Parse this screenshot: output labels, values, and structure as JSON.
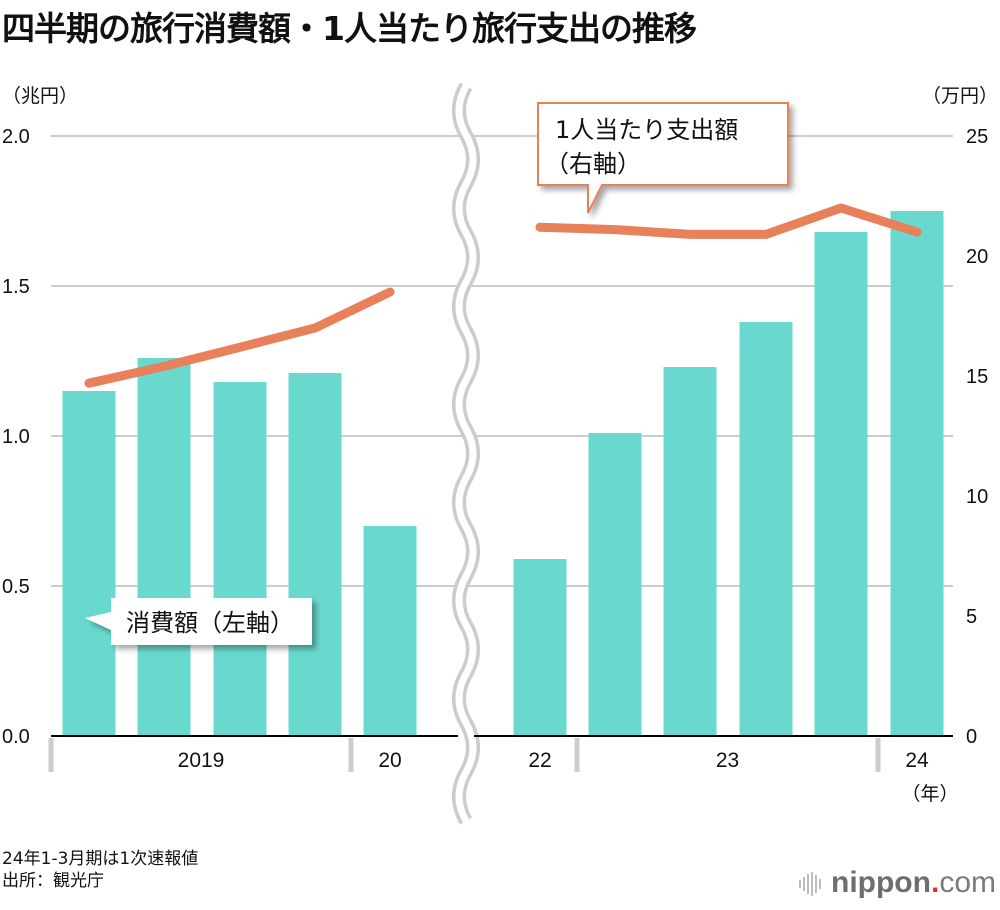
{
  "title": "四半期の旅行消費額・1人当たり旅行支出の推移",
  "notes": [
    "24年1-3月期は1次速報値",
    "出所：観光庁"
  ],
  "brand": {
    "name": "nippon",
    "dot": ".",
    "tld": "com"
  },
  "colors": {
    "bar": "#69d9cf",
    "line": "#e8805a",
    "grid": "#cccccc",
    "axis": "#000000",
    "break": "#cccccc",
    "separator": "#cccccc"
  },
  "chart_data": {
    "type": "bar",
    "title": "四半期の旅行消費額・1人当たり旅行支出の推移",
    "left_axis": {
      "unit": "（兆円）",
      "ylim": [
        0,
        2.0
      ],
      "ticks": [
        "0.0",
        "0.5",
        "1.0",
        "1.5",
        "2.0"
      ],
      "tick_values": [
        0,
        0.5,
        1.0,
        1.5,
        2.0
      ]
    },
    "right_axis": {
      "unit": "（万円）",
      "ylim": [
        0,
        25
      ],
      "ticks": [
        "0",
        "5",
        "10",
        "15",
        "20",
        "25"
      ],
      "tick_values": [
        0,
        5,
        10,
        15,
        20,
        25
      ]
    },
    "x_unit": "（年）",
    "grid": true,
    "axis_break": "between 2020 and 2022",
    "year_groups": [
      {
        "label": "2019",
        "quarters": 4
      },
      {
        "label": "20",
        "quarters": 1
      },
      {
        "label": "22",
        "quarters": 1
      },
      {
        "label": "23",
        "quarters": 4
      },
      {
        "label": "24",
        "quarters": 1
      }
    ],
    "categories": [
      "2019 Q1",
      "2019 Q2",
      "2019 Q3",
      "2019 Q4",
      "2020 Q1",
      "2022 Q4",
      "2023 Q1",
      "2023 Q2",
      "2023 Q3",
      "2023 Q4",
      "2024 Q1"
    ],
    "series": [
      {
        "name": "消費額（左軸）",
        "type": "bar",
        "axis": "left",
        "values": [
          1.15,
          1.26,
          1.18,
          1.21,
          0.7,
          0.59,
          1.01,
          1.23,
          1.38,
          1.68,
          1.75
        ]
      },
      {
        "name": "1人当たり支出額（右軸）",
        "type": "line",
        "axis": "right",
        "segments": [
          [
            0,
            4
          ],
          [
            5,
            10
          ]
        ],
        "values": [
          14.7,
          15.4,
          16.2,
          17.0,
          18.5,
          21.2,
          21.1,
          20.9,
          20.9,
          22.0,
          21.0
        ]
      }
    ],
    "annotations": [
      {
        "text_lines": [
          "消費額（左軸）"
        ],
        "points_to": "bars"
      },
      {
        "text_lines": [
          "1人当たり支出額",
          "（右軸）"
        ],
        "points_to": "line"
      }
    ]
  }
}
